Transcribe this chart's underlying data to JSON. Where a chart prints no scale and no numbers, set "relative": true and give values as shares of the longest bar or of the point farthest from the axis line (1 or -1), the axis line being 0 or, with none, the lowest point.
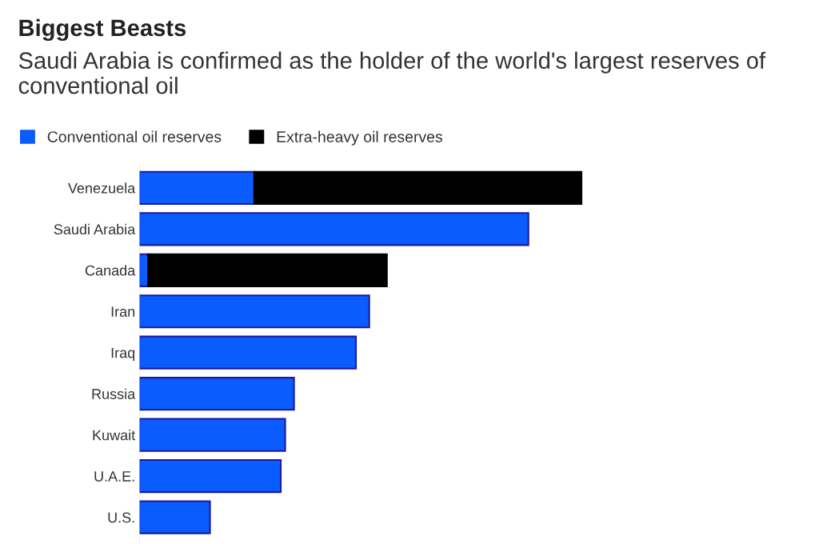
{
  "chart_data": {
    "type": "bar",
    "orientation": "horizontal",
    "stacked": true,
    "relative": true,
    "title": "Biggest Beasts",
    "subtitle": "Saudi Arabia is confirmed as the holder of the world's largest reserves of conventional oil",
    "categories": [
      "Venezuela",
      "Saudi Arabia",
      "Canada",
      "Iran",
      "Iraq",
      "Russia",
      "Kuwait",
      "U.A.E.",
      "U.S."
    ],
    "series": [
      {
        "name": "Conventional oil reserves",
        "color": "#0a5cff",
        "values": [
          0.26,
          0.88,
          0.02,
          0.52,
          0.49,
          0.35,
          0.33,
          0.32,
          0.16
        ]
      },
      {
        "name": "Extra-heavy oil reserves",
        "color": "#000000",
        "values": [
          0.74,
          null,
          0.54,
          null,
          null,
          null,
          null,
          null,
          null
        ]
      }
    ],
    "legend": "top left"
  }
}
